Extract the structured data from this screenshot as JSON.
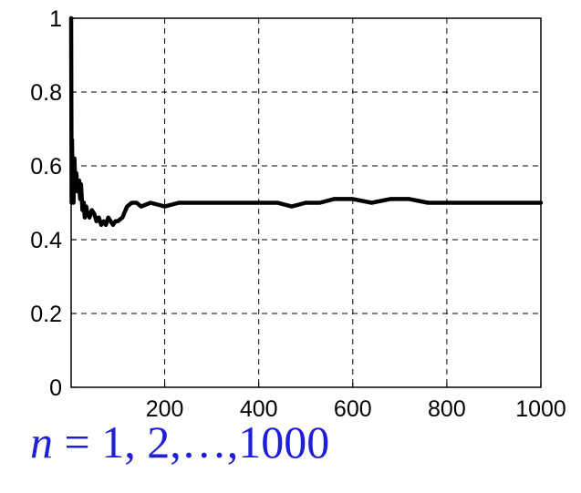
{
  "chart_data": {
    "type": "line",
    "title": "",
    "xlabel": "",
    "ylabel": "",
    "xlim": [
      1,
      1000
    ],
    "ylim": [
      0,
      1
    ],
    "grid": true,
    "x_ticks": [
      200,
      400,
      600,
      800,
      1000
    ],
    "x_tick_labels": [
      "200",
      "400",
      "600",
      "800",
      "1000"
    ],
    "y_ticks": [
      0,
      0.2,
      0.4,
      0.6,
      0.8,
      1
    ],
    "y_tick_labels": [
      "0",
      "0.2",
      "0.4",
      "0.6",
      "0.8",
      "1"
    ],
    "line_color": "#000000",
    "series": [
      {
        "x": [
          1,
          2,
          3,
          4,
          5,
          6,
          8,
          10,
          12,
          15,
          18,
          20,
          22,
          25,
          28,
          30,
          33,
          36,
          40,
          45,
          50,
          55,
          60,
          65,
          70,
          75,
          80,
          85,
          90,
          95,
          100,
          110,
          120,
          130,
          140,
          150,
          170,
          200,
          230,
          260,
          290,
          320,
          350,
          380,
          410,
          440,
          470,
          500,
          530,
          560,
          600,
          640,
          680,
          720,
          760,
          800,
          840,
          880,
          920,
          960,
          1000
        ],
        "y": [
          1.0,
          0.5,
          0.67,
          0.55,
          0.6,
          0.5,
          0.62,
          0.55,
          0.58,
          0.53,
          0.56,
          0.51,
          0.55,
          0.48,
          0.5,
          0.46,
          0.49,
          0.47,
          0.46,
          0.48,
          0.47,
          0.45,
          0.46,
          0.44,
          0.45,
          0.44,
          0.46,
          0.45,
          0.44,
          0.45,
          0.45,
          0.46,
          0.49,
          0.5,
          0.5,
          0.49,
          0.5,
          0.49,
          0.5,
          0.5,
          0.5,
          0.5,
          0.5,
          0.5,
          0.5,
          0.5,
          0.49,
          0.5,
          0.5,
          0.51,
          0.51,
          0.5,
          0.51,
          0.51,
          0.5,
          0.5,
          0.5,
          0.5,
          0.5,
          0.5,
          0.5
        ]
      }
    ]
  },
  "caption": {
    "variable": "n",
    "equals": " = ",
    "values": "1, 2,…,1000"
  }
}
